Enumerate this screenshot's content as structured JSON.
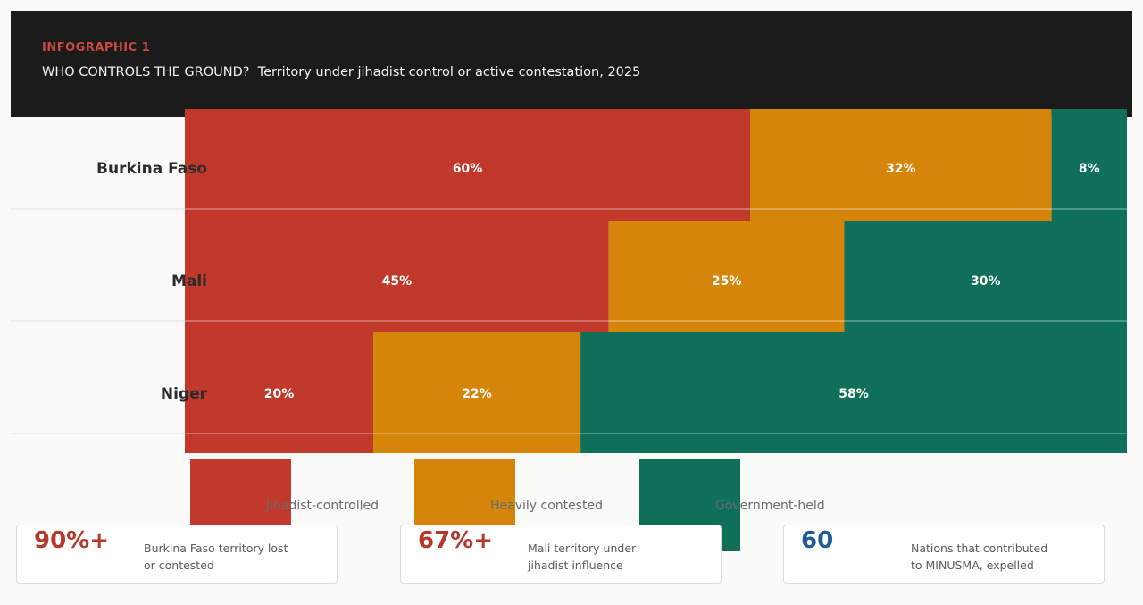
{
  "header": {
    "kicker": "INFOGRAPHIC 1",
    "title": "WHO CONTROLS THE GROUND?  Territory under jihadist control or active contestation, 2025"
  },
  "chart_data": {
    "type": "bar",
    "orientation": "horizontal",
    "stacked": true,
    "unit": "%",
    "categories": [
      "Burkina Faso",
      "Mali",
      "Niger"
    ],
    "series": [
      {
        "name": "Jihadist-controlled",
        "values": [
          60,
          45,
          20
        ],
        "color": "#c0392b"
      },
      {
        "name": "Heavily contested",
        "values": [
          32,
          25,
          22
        ],
        "color": "#d4850a"
      },
      {
        "name": "Government-held",
        "values": [
          8,
          30,
          58
        ],
        "color": "#0f6f58"
      }
    ],
    "data_labels": [
      [
        "60%",
        "45%",
        "20%"
      ],
      [
        "32%",
        "25%",
        "22%"
      ],
      [
        "8%",
        "30%",
        "58%"
      ]
    ],
    "xlim": [
      0,
      100
    ],
    "grid": false,
    "legend_position": "bottom"
  },
  "stats": [
    {
      "value": "90%+",
      "desc_line1": "Burkina Faso territory lost",
      "desc_line2": "or contested",
      "color": "#b5382c"
    },
    {
      "value": "67%+",
      "desc_line1": "Mali territory under",
      "desc_line2": "jihadist influence",
      "color": "#b5382c"
    },
    {
      "value": "60",
      "desc_line1": "Nations that contributed",
      "desc_line2": "to MINUSMA, expelled",
      "color": "#1f5a99"
    }
  ]
}
